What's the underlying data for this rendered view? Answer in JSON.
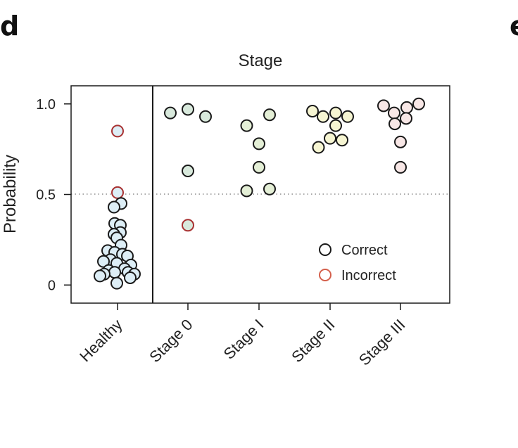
{
  "panel_letters": [
    "d",
    "e"
  ],
  "chart_data": {
    "type": "scatter",
    "title": "Stage",
    "xlabel": "",
    "ylabel": "Probability",
    "ylim": [
      -0.1,
      1.1
    ],
    "yticks": [
      {
        "value": 0,
        "label": "0"
      },
      {
        "value": 0.5,
        "label": "0.5"
      },
      {
        "value": 1.0,
        "label": "1.0"
      }
    ],
    "threshold": 0.5,
    "categories": [
      "Healthy",
      "Stage 0",
      "Stage I",
      "Stage II",
      "Stage III"
    ],
    "colors": {
      "Healthy": "#ddeef6",
      "Stage 0": "#d8e9dc",
      "Stage I": "#e4efd6",
      "Stage II": "#f6f5d2",
      "Stage III": "#f8e7e6",
      "outline_correct": "#1a1a1a",
      "outline_incorrect": "#a83232",
      "legend_incorrect": "#d4604c"
    },
    "legend": {
      "position": "lower-right",
      "items": [
        "Correct",
        "Incorrect"
      ]
    },
    "points": [
      {
        "category": "Healthy",
        "y": 0.85,
        "correct": false,
        "dx": 0
      },
      {
        "category": "Healthy",
        "y": 0.51,
        "correct": false,
        "dx": 0
      },
      {
        "category": "Healthy",
        "y": 0.45,
        "correct": true,
        "dx": 0.1
      },
      {
        "category": "Healthy",
        "y": 0.43,
        "correct": true,
        "dx": -0.1
      },
      {
        "category": "Healthy",
        "y": 0.34,
        "correct": true,
        "dx": -0.08
      },
      {
        "category": "Healthy",
        "y": 0.33,
        "correct": true,
        "dx": 0.08
      },
      {
        "category": "Healthy",
        "y": 0.29,
        "correct": true,
        "dx": 0.08
      },
      {
        "category": "Healthy",
        "y": 0.28,
        "correct": true,
        "dx": -0.1
      },
      {
        "category": "Healthy",
        "y": 0.26,
        "correct": true,
        "dx": -0.02
      },
      {
        "category": "Healthy",
        "y": 0.22,
        "correct": true,
        "dx": 0.1
      },
      {
        "category": "Healthy",
        "y": 0.19,
        "correct": true,
        "dx": -0.28
      },
      {
        "category": "Healthy",
        "y": 0.18,
        "correct": true,
        "dx": -0.08
      },
      {
        "category": "Healthy",
        "y": 0.17,
        "correct": true,
        "dx": 0.14
      },
      {
        "category": "Healthy",
        "y": 0.16,
        "correct": true,
        "dx": 0.28
      },
      {
        "category": "Healthy",
        "y": 0.14,
        "correct": true,
        "dx": -0.2
      },
      {
        "category": "Healthy",
        "y": 0.13,
        "correct": true,
        "dx": -0.4
      },
      {
        "category": "Healthy",
        "y": 0.12,
        "correct": true,
        "dx": -0.02
      },
      {
        "category": "Healthy",
        "y": 0.11,
        "correct": true,
        "dx": 0.38
      },
      {
        "category": "Healthy",
        "y": 0.09,
        "correct": true,
        "dx": 0.2
      },
      {
        "category": "Healthy",
        "y": 0.08,
        "correct": true,
        "dx": -0.25
      },
      {
        "category": "Healthy",
        "y": 0.07,
        "correct": true,
        "dx": -0.08
      },
      {
        "category": "Healthy",
        "y": 0.07,
        "correct": true,
        "dx": 0.3
      },
      {
        "category": "Healthy",
        "y": 0.06,
        "correct": true,
        "dx": -0.38
      },
      {
        "category": "Healthy",
        "y": 0.06,
        "correct": true,
        "dx": 0.48
      },
      {
        "category": "Healthy",
        "y": 0.05,
        "correct": true,
        "dx": -0.5
      },
      {
        "category": "Healthy",
        "y": 0.04,
        "correct": true,
        "dx": 0.36
      },
      {
        "category": "Healthy",
        "y": 0.01,
        "correct": true,
        "dx": -0.02
      },
      {
        "category": "Stage 0",
        "y": 0.97,
        "correct": true,
        "dx": 0
      },
      {
        "category": "Stage 0",
        "y": 0.95,
        "correct": true,
        "dx": -0.5
      },
      {
        "category": "Stage 0",
        "y": 0.93,
        "correct": true,
        "dx": 0.5
      },
      {
        "category": "Stage 0",
        "y": 0.63,
        "correct": true,
        "dx": 0
      },
      {
        "category": "Stage 0",
        "y": 0.33,
        "correct": false,
        "dx": 0
      },
      {
        "category": "Stage I",
        "y": 0.94,
        "correct": true,
        "dx": 0.3
      },
      {
        "category": "Stage I",
        "y": 0.88,
        "correct": true,
        "dx": -0.35
      },
      {
        "category": "Stage I",
        "y": 0.78,
        "correct": true,
        "dx": 0
      },
      {
        "category": "Stage I",
        "y": 0.65,
        "correct": true,
        "dx": 0
      },
      {
        "category": "Stage I",
        "y": 0.53,
        "correct": true,
        "dx": 0.3
      },
      {
        "category": "Stage I",
        "y": 0.52,
        "correct": true,
        "dx": -0.35
      },
      {
        "category": "Stage II",
        "y": 0.96,
        "correct": true,
        "dx": -0.5
      },
      {
        "category": "Stage II",
        "y": 0.95,
        "correct": true,
        "dx": 0.16
      },
      {
        "category": "Stage II",
        "y": 0.93,
        "correct": true,
        "dx": -0.2
      },
      {
        "category": "Stage II",
        "y": 0.93,
        "correct": true,
        "dx": 0.5
      },
      {
        "category": "Stage II",
        "y": 0.88,
        "correct": true,
        "dx": 0.16
      },
      {
        "category": "Stage II",
        "y": 0.81,
        "correct": true,
        "dx": 0
      },
      {
        "category": "Stage II",
        "y": 0.8,
        "correct": true,
        "dx": 0.34
      },
      {
        "category": "Stage II",
        "y": 0.76,
        "correct": true,
        "dx": -0.33
      },
      {
        "category": "Stage III",
        "y": 1.0,
        "correct": true,
        "dx": 0.52
      },
      {
        "category": "Stage III",
        "y": 0.99,
        "correct": true,
        "dx": -0.48
      },
      {
        "category": "Stage III",
        "y": 0.98,
        "correct": true,
        "dx": 0.18
      },
      {
        "category": "Stage III",
        "y": 0.95,
        "correct": true,
        "dx": -0.18
      },
      {
        "category": "Stage III",
        "y": 0.92,
        "correct": true,
        "dx": 0.16
      },
      {
        "category": "Stage III",
        "y": 0.89,
        "correct": true,
        "dx": -0.16
      },
      {
        "category": "Stage III",
        "y": 0.79,
        "correct": true,
        "dx": 0
      },
      {
        "category": "Stage III",
        "y": 0.65,
        "correct": true,
        "dx": 0
      }
    ]
  }
}
